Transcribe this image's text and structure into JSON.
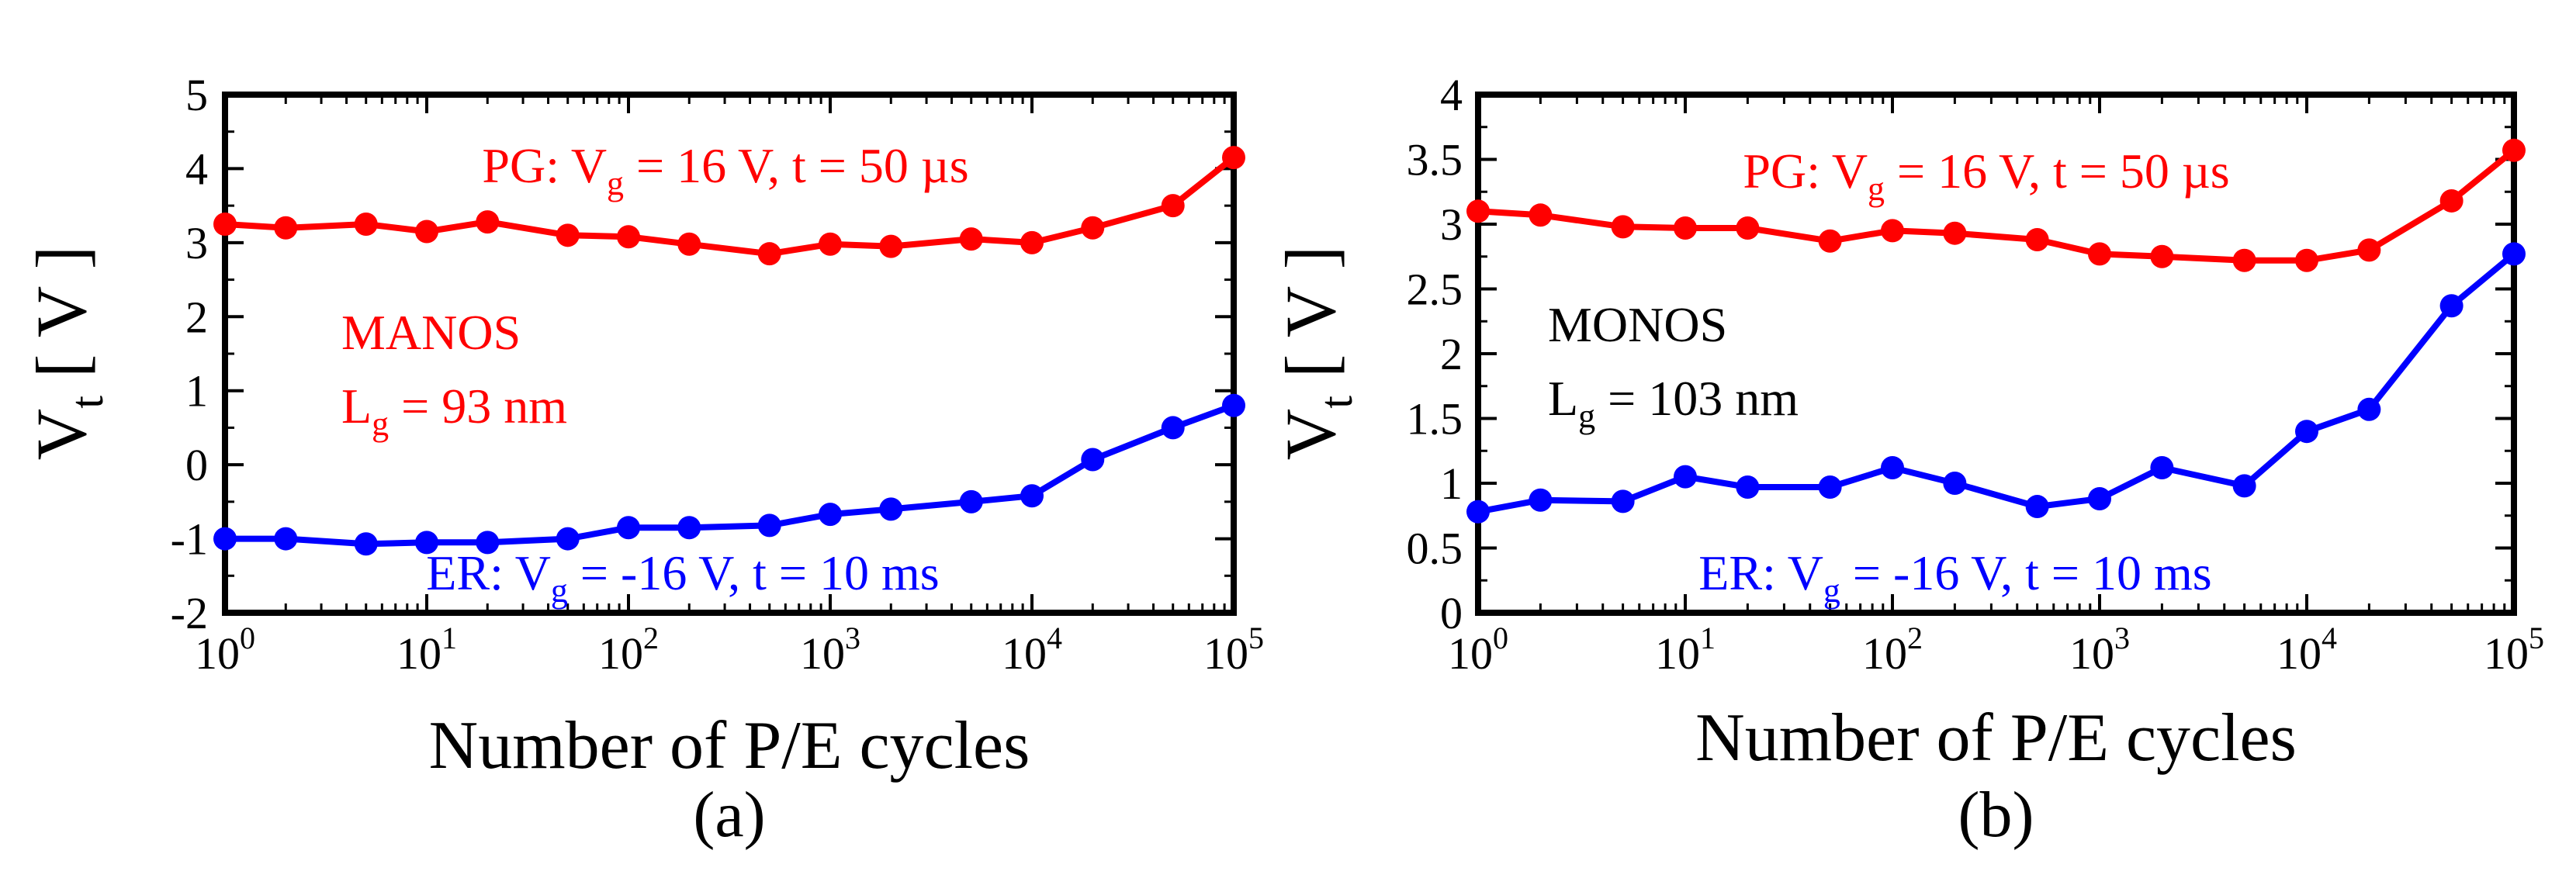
{
  "chart_data": [
    {
      "type": "line",
      "panel_label": "(a)",
      "xlabel": "Number of P/E cycles",
      "ylabel": {
        "main": "V",
        "sub": "t",
        "unit": "[ V ]"
      },
      "xscale": "log",
      "xlim": [
        1,
        100000
      ],
      "ylim": [
        -2,
        5
      ],
      "y_ticks": [
        "-2",
        "-1",
        "0",
        "1",
        "2",
        "3",
        "4",
        "5"
      ],
      "x_ticks": [
        {
          "base": "10",
          "exp": "0"
        },
        {
          "base": "10",
          "exp": "1"
        },
        {
          "base": "10",
          "exp": "2"
        },
        {
          "base": "10",
          "exp": "3"
        },
        {
          "base": "10",
          "exp": "4"
        },
        {
          "base": "10",
          "exp": "5"
        }
      ],
      "device_label": "MANOS",
      "gate_length": {
        "prefix": "L",
        "sub": "g",
        "suffix": " = 93 nm"
      },
      "device_label_color": "#ff0000",
      "series": [
        {
          "name": "PG",
          "color": "#ff0000",
          "annotation": {
            "prefix": "PG: V",
            "sub": "g",
            "suffix": " = 16 V, t = 50 µs"
          },
          "x": [
            1,
            2,
            5,
            10,
            20,
            50,
            100,
            200,
            500,
            1000,
            2000,
            5000,
            10000,
            20000,
            50000,
            100000
          ],
          "y": [
            3.25,
            3.2,
            3.25,
            3.15,
            3.28,
            3.1,
            3.08,
            2.98,
            2.85,
            2.98,
            2.95,
            3.05,
            3.0,
            3.2,
            3.5,
            4.15
          ]
        },
        {
          "name": "ER",
          "color": "#0000ff",
          "annotation": {
            "prefix": "ER: V",
            "sub": "g",
            "suffix": " = -16 V, t = 10 ms"
          },
          "x": [
            1,
            2,
            5,
            10,
            20,
            50,
            100,
            200,
            500,
            1000,
            2000,
            5000,
            10000,
            20000,
            50000,
            100000
          ],
          "y": [
            -1.0,
            -1.0,
            -1.07,
            -1.05,
            -1.05,
            -1.0,
            -0.85,
            -0.85,
            -0.82,
            -0.67,
            -0.6,
            -0.5,
            -0.42,
            0.07,
            0.5,
            0.8
          ]
        }
      ]
    },
    {
      "type": "line",
      "panel_label": "(b)",
      "xlabel": "Number of P/E cycles",
      "ylabel": {
        "main": "V",
        "sub": "t",
        "unit": "[ V ]"
      },
      "xscale": "log",
      "xlim": [
        1,
        100000
      ],
      "ylim": [
        0,
        4
      ],
      "y_ticks": [
        "0",
        "0.5",
        "1",
        "1.5",
        "2",
        "2.5",
        "3",
        "3.5",
        "4"
      ],
      "x_ticks": [
        {
          "base": "10",
          "exp": "0"
        },
        {
          "base": "10",
          "exp": "1"
        },
        {
          "base": "10",
          "exp": "2"
        },
        {
          "base": "10",
          "exp": "3"
        },
        {
          "base": "10",
          "exp": "4"
        },
        {
          "base": "10",
          "exp": "5"
        }
      ],
      "device_label": "MONOS",
      "gate_length": {
        "prefix": "L",
        "sub": "g",
        "suffix": " = 103 nm"
      },
      "device_label_color": "#000000",
      "series": [
        {
          "name": "PG",
          "color": "#ff0000",
          "annotation": {
            "prefix": "PG: V",
            "sub": "g",
            "suffix": " = 16 V, t = 50 µs"
          },
          "x": [
            1,
            2,
            5,
            10,
            20,
            50,
            100,
            200,
            500,
            1000,
            2000,
            5000,
            10000,
            20000,
            50000,
            100000
          ],
          "y": [
            3.1,
            3.07,
            2.98,
            2.97,
            2.97,
            2.87,
            2.95,
            2.93,
            2.88,
            2.77,
            2.75,
            2.72,
            2.72,
            2.8,
            3.18,
            3.57
          ]
        },
        {
          "name": "ER",
          "color": "#0000ff",
          "annotation": {
            "prefix": "ER: V",
            "sub": "g",
            "suffix": " = -16 V, t = 10 ms"
          },
          "x": [
            1,
            2,
            5,
            10,
            20,
            50,
            100,
            200,
            500,
            1000,
            2000,
            5000,
            10000,
            20000,
            50000,
            100000
          ],
          "y": [
            0.78,
            0.87,
            0.86,
            1.05,
            0.97,
            0.97,
            1.12,
            1.0,
            0.82,
            0.88,
            1.12,
            0.98,
            1.4,
            1.57,
            2.37,
            2.77
          ]
        }
      ]
    }
  ]
}
